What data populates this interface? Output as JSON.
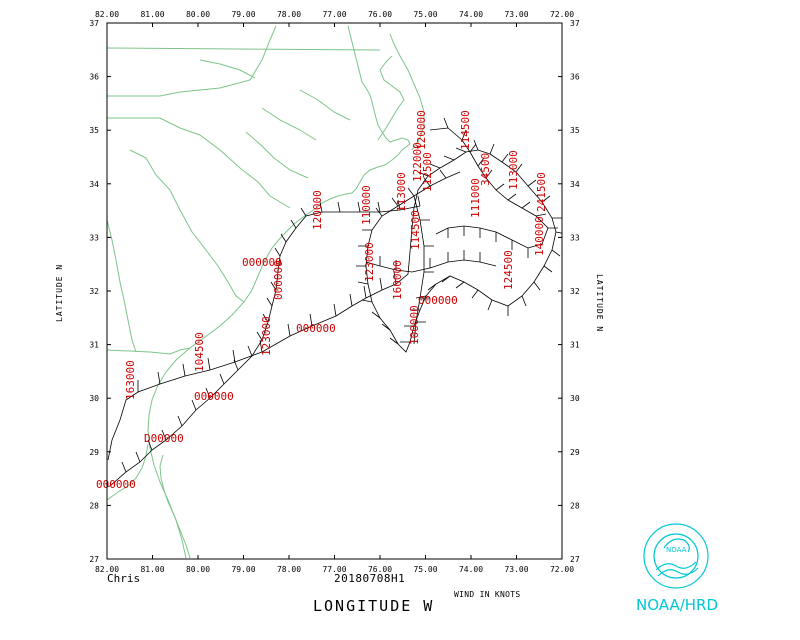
{
  "map": {
    "lon_ticks": [
      "82.00",
      "81.00",
      "80.00",
      "79.00",
      "78.00",
      "77.00",
      "76.00",
      "75.00",
      "74.00",
      "73.00",
      "72.00"
    ],
    "lat_ticks": [
      "37",
      "36",
      "35",
      "34",
      "33",
      "32",
      "31",
      "30",
      "29",
      "28",
      "27"
    ],
    "x_axis_label": "LONGITUDE  W",
    "y_axis_label_left": "LATITUDE  N",
    "y_axis_label_right": "LATITUDE  N",
    "storm_name": "Chris",
    "analysis_time": "20180708H1",
    "units_note": "WIND IN KNOTS",
    "logo_text": "NOAA/HRD",
    "colors": {
      "coast": "#7dc48a",
      "obs": "#cc0000",
      "logo": "#00c8d4",
      "frame": "#000000"
    }
  },
  "obs_labels": [
    {
      "text": "120000"
    },
    {
      "text": "114500"
    },
    {
      "text": "34500"
    },
    {
      "text": "113000"
    },
    {
      "text": "241500"
    },
    {
      "text": "111000"
    },
    {
      "text": "122000"
    },
    {
      "text": "112500"
    },
    {
      "text": "113000"
    },
    {
      "text": "110000"
    },
    {
      "text": "124500"
    },
    {
      "text": "140000"
    },
    {
      "text": "114500"
    },
    {
      "text": "123000"
    },
    {
      "text": "120000"
    },
    {
      "text": "160000"
    },
    {
      "text": "100000"
    },
    {
      "text": "000000"
    },
    {
      "text": "123000"
    },
    {
      "text": "104500"
    },
    {
      "text": "163000"
    },
    {
      "text": "000000"
    },
    {
      "text": "D00000"
    },
    {
      "text": "000000"
    },
    {
      "text": "000000"
    },
    {
      "text": "000000"
    },
    {
      "text": "000000"
    }
  ]
}
